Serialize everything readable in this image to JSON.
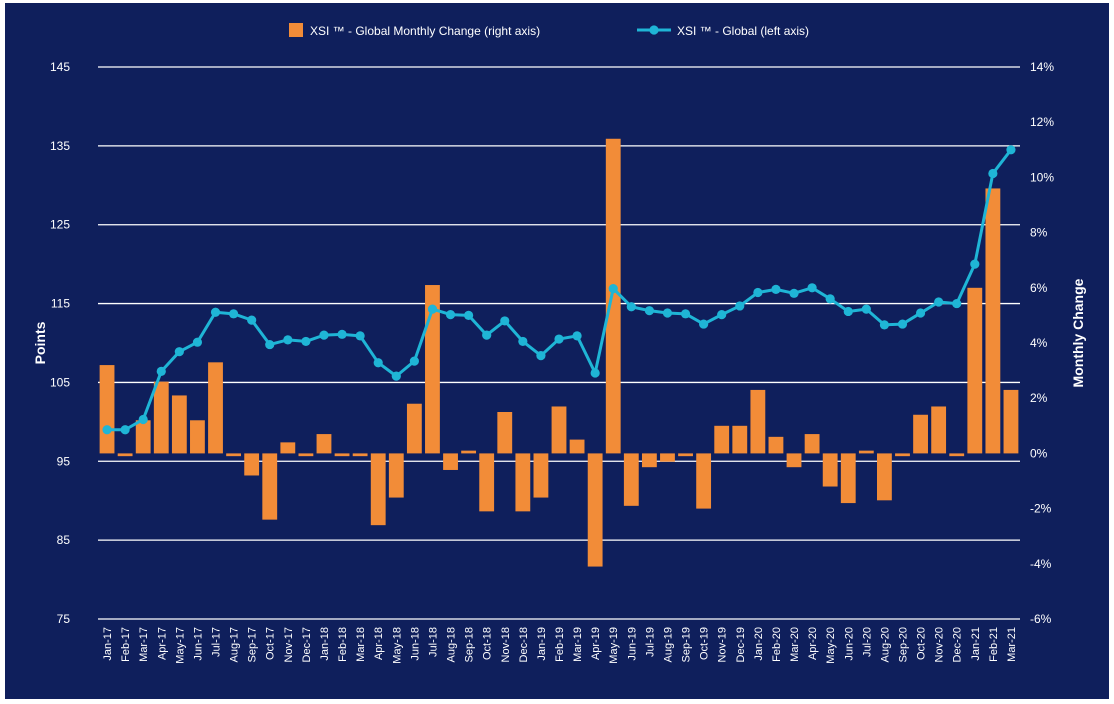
{
  "chart_data": {
    "type": "bar+line",
    "title": "",
    "ylabel_left": "Points",
    "ylabel_right": "Monthly Change",
    "ylim_left": [
      75,
      145
    ],
    "yticks_left": [
      "75",
      "85",
      "95",
      "105",
      "115",
      "125",
      "135",
      "145"
    ],
    "ylim_right": [
      -6,
      14
    ],
    "yticks_right": [
      "-6%",
      "-4%",
      "-2%",
      "0%",
      "2%",
      "4%",
      "6%",
      "8%",
      "10%",
      "12%",
      "14%"
    ],
    "grid": true,
    "legend_position": "top-center",
    "categories": [
      "Jan-17",
      "Feb-17",
      "Mar-17",
      "Apr-17",
      "May-17",
      "Jun-17",
      "Jul-17",
      "Aug-17",
      "Sep-17",
      "Oct-17",
      "Nov-17",
      "Dec-17",
      "Jan-18",
      "Feb-18",
      "Mar-18",
      "Apr-18",
      "May-18",
      "Jun-18",
      "Jul-18",
      "Aug-18",
      "Sep-18",
      "Oct-18",
      "Nov-18",
      "Dec-18",
      "Jan-19",
      "Feb-19",
      "Mar-19",
      "Apr-19",
      "May-19",
      "Jun-19",
      "Jul-19",
      "Aug-19",
      "Sep-19",
      "Oct-19",
      "Nov-19",
      "Dec-19",
      "Jan-20",
      "Feb-20",
      "Mar-20",
      "Apr-20",
      "May-20",
      "Jun-20",
      "Jul-20",
      "Aug-20",
      "Sep-20",
      "Oct-20",
      "Nov-20",
      "Dec-20",
      "Jan-21",
      "Feb-21",
      "Mar-21"
    ],
    "series": [
      {
        "name": "XSI ™ - Global Monthly Change (right axis)",
        "type": "bar",
        "axis": "right",
        "color": "#F28C38",
        "values": [
          3.2,
          -0.1,
          1.2,
          2.6,
          2.1,
          1.2,
          3.3,
          -0.1,
          -0.8,
          -2.4,
          0.4,
          -0.1,
          0.7,
          -0.1,
          -0.1,
          -2.6,
          -1.6,
          1.8,
          6.1,
          -0.6,
          0.1,
          -2.1,
          1.5,
          -2.1,
          -1.6,
          1.7,
          0.5,
          -4.1,
          11.4,
          -1.9,
          -0.5,
          -0.3,
          -0.1,
          -2.0,
          1.0,
          1.0,
          2.3,
          0.6,
          -0.5,
          0.7,
          -1.2,
          -1.8,
          0.1,
          -1.7,
          -0.1,
          1.4,
          1.7,
          -0.1,
          6.0,
          9.6,
          2.3
        ]
      },
      {
        "name": "XSI ™ - Global (left axis)",
        "type": "line",
        "axis": "left",
        "color": "#1FB5D6",
        "values": [
          99.0,
          99.0,
          100.3,
          106.4,
          108.9,
          110.1,
          113.9,
          113.7,
          112.9,
          109.8,
          110.4,
          110.2,
          111.0,
          111.1,
          110.9,
          107.5,
          105.8,
          107.7,
          114.3,
          113.6,
          113.5,
          111.0,
          112.8,
          110.2,
          108.4,
          110.5,
          110.9,
          106.2,
          116.9,
          114.6,
          114.1,
          113.8,
          113.7,
          112.4,
          113.6,
          114.7,
          116.4,
          116.8,
          116.3,
          117.0,
          115.6,
          114.0,
          114.3,
          112.3,
          112.4,
          113.8,
          115.2,
          115.0,
          120.0,
          131.5,
          134.5
        ]
      }
    ]
  }
}
